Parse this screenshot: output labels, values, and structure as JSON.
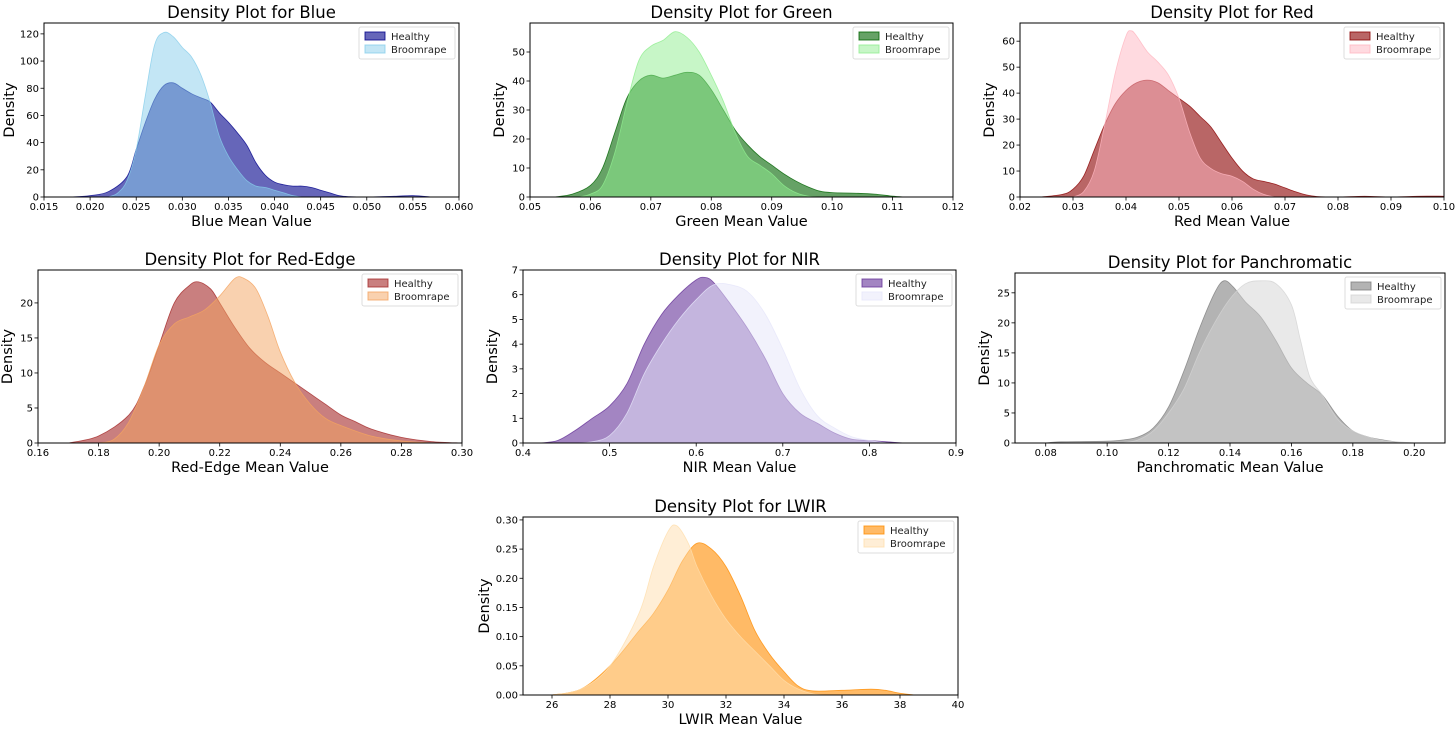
{
  "chart_data": [
    {
      "type": "area",
      "title": "Density Plot for Blue",
      "xlabel": "Blue Mean Value",
      "ylabel": "Density",
      "xlim": [
        0.015,
        0.06
      ],
      "ylim": [
        0,
        128
      ],
      "xticks": [
        0.015,
        0.02,
        0.025,
        0.03,
        0.035,
        0.04,
        0.045,
        0.05,
        0.055,
        0.06
      ],
      "xtick_labels": [
        "0.015",
        "0.020",
        "0.025",
        "0.030",
        "0.035",
        "0.040",
        "0.045",
        "0.050",
        "0.055",
        "0.060"
      ],
      "yticks": [
        0,
        20,
        40,
        60,
        80,
        100,
        120
      ],
      "ytick_labels": [
        "0",
        "20",
        "40",
        "60",
        "80",
        "100",
        "120"
      ],
      "legend": "top-right",
      "series": [
        {
          "name": "Healthy",
          "color": "#00008b",
          "x": [
            0.018,
            0.02,
            0.022,
            0.024,
            0.025,
            0.026,
            0.027,
            0.028,
            0.029,
            0.03,
            0.031,
            0.032,
            0.033,
            0.034,
            0.035,
            0.036,
            0.037,
            0.038,
            0.039,
            0.04,
            0.041,
            0.042,
            0.043,
            0.044,
            0.045,
            0.046,
            0.047,
            0.048,
            0.05,
            0.053,
            0.055,
            0.057
          ],
          "y": [
            0,
            1,
            4,
            15,
            35,
            55,
            72,
            82,
            84,
            80,
            76,
            73,
            70,
            62,
            55,
            47,
            38,
            25,
            16,
            11,
            9,
            8,
            8,
            7,
            5,
            3,
            1,
            0.3,
            0,
            0.5,
            1,
            0
          ]
        },
        {
          "name": "Broomrape",
          "color": "#87ceeb",
          "x": [
            0.022,
            0.023,
            0.024,
            0.025,
            0.026,
            0.027,
            0.028,
            0.029,
            0.03,
            0.031,
            0.032,
            0.033,
            0.034,
            0.035,
            0.036,
            0.037,
            0.038,
            0.039,
            0.04,
            0.041,
            0.042,
            0.043
          ],
          "y": [
            0,
            3,
            12,
            35,
            75,
            112,
            121,
            118,
            110,
            103,
            90,
            70,
            45,
            30,
            20,
            12,
            8,
            7,
            5,
            3,
            1,
            0
          ]
        }
      ]
    },
    {
      "type": "area",
      "title": "Density Plot for Green",
      "xlabel": "Green Mean Value",
      "ylabel": "Density",
      "xlim": [
        0.05,
        0.12
      ],
      "ylim": [
        0,
        60
      ],
      "xticks": [
        0.05,
        0.06,
        0.07,
        0.08,
        0.09,
        0.1,
        0.11,
        0.12
      ],
      "xtick_labels": [
        "0.05",
        "0.06",
        "0.07",
        "0.08",
        "0.09",
        "0.10",
        "0.11",
        "0.12"
      ],
      "yticks": [
        0,
        10,
        20,
        30,
        40,
        50
      ],
      "ytick_labels": [
        "0",
        "10",
        "20",
        "30",
        "40",
        "50"
      ],
      "legend": "top-right",
      "series": [
        {
          "name": "Healthy",
          "color": "#006400",
          "x": [
            0.054,
            0.057,
            0.06,
            0.062,
            0.064,
            0.066,
            0.068,
            0.07,
            0.072,
            0.074,
            0.076,
            0.078,
            0.08,
            0.082,
            0.084,
            0.086,
            0.088,
            0.09,
            0.092,
            0.094,
            0.096,
            0.098,
            0.1,
            0.104,
            0.107,
            0.11,
            0.112
          ],
          "y": [
            0,
            1,
            4,
            10,
            22,
            34,
            40,
            42,
            41,
            42,
            43,
            42,
            37,
            30,
            23,
            18,
            14,
            11,
            8,
            5.5,
            3.5,
            2,
            1.5,
            1.3,
            1,
            0.3,
            0
          ]
        },
        {
          "name": "Broomrape",
          "color": "#90ee90",
          "x": [
            0.058,
            0.06,
            0.062,
            0.064,
            0.066,
            0.068,
            0.07,
            0.072,
            0.074,
            0.076,
            0.078,
            0.08,
            0.082,
            0.084,
            0.086,
            0.088,
            0.09,
            0.092,
            0.094,
            0.096,
            0.098
          ],
          "y": [
            0,
            1,
            4,
            15,
            32,
            47,
            52,
            54,
            57,
            55,
            50,
            42,
            33,
            22,
            14,
            11,
            8,
            4,
            1.5,
            0.3,
            0
          ]
        }
      ]
    },
    {
      "type": "area",
      "title": "Density Plot for Red",
      "xlabel": "Red Mean Value",
      "ylabel": "Density",
      "xlim": [
        0.02,
        0.1
      ],
      "ylim": [
        0,
        67
      ],
      "xticks": [
        0.02,
        0.03,
        0.04,
        0.05,
        0.06,
        0.07,
        0.08,
        0.09,
        0.1
      ],
      "xtick_labels": [
        "0.02",
        "0.03",
        "0.04",
        "0.05",
        "0.06",
        "0.07",
        "0.08",
        "0.09",
        "0.10"
      ],
      "yticks": [
        0,
        10,
        20,
        30,
        40,
        50,
        60
      ],
      "ytick_labels": [
        "0",
        "10",
        "20",
        "30",
        "40",
        "50",
        "60"
      ],
      "legend": "top-right",
      "series": [
        {
          "name": "Healthy",
          "color": "#8b0000",
          "x": [
            0.024,
            0.028,
            0.03,
            0.032,
            0.034,
            0.036,
            0.038,
            0.04,
            0.042,
            0.044,
            0.046,
            0.048,
            0.05,
            0.052,
            0.054,
            0.056,
            0.058,
            0.06,
            0.062,
            0.064,
            0.066,
            0.068,
            0.07,
            0.072,
            0.074,
            0.076,
            0.08,
            0.085,
            0.09,
            0.095,
            0.1
          ],
          "y": [
            0,
            1,
            3,
            8,
            18,
            28,
            36,
            41,
            44,
            45,
            44,
            41,
            38,
            35,
            31,
            27,
            21,
            15,
            10,
            7,
            6,
            5,
            3.5,
            2,
            0.8,
            0.2,
            0,
            0.3,
            0,
            0.3,
            0.3
          ]
        },
        {
          "name": "Broomrape",
          "color": "#ffb6c1",
          "x": [
            0.03,
            0.032,
            0.034,
            0.036,
            0.038,
            0.04,
            0.041,
            0.042,
            0.044,
            0.046,
            0.048,
            0.05,
            0.052,
            0.054,
            0.056,
            0.058,
            0.06,
            0.062,
            0.064,
            0.066,
            0.068
          ],
          "y": [
            0,
            2,
            10,
            28,
            48,
            62,
            64,
            62,
            56,
            52,
            47,
            38,
            25,
            15,
            11,
            9,
            8,
            6,
            3,
            1,
            0
          ]
        }
      ]
    },
    {
      "type": "area",
      "title": "Density Plot for Red-Edge",
      "xlabel": "Red-Edge Mean Value",
      "ylabel": "Density",
      "xlim": [
        0.16,
        0.3
      ],
      "ylim": [
        0,
        24.7
      ],
      "xticks": [
        0.16,
        0.18,
        0.2,
        0.22,
        0.24,
        0.26,
        0.28,
        0.3
      ],
      "xtick_labels": [
        "0.16",
        "0.18",
        "0.20",
        "0.22",
        "0.24",
        "0.26",
        "0.28",
        "0.30"
      ],
      "yticks": [
        0,
        5,
        10,
        15,
        20
      ],
      "ytick_labels": [
        "0",
        "5",
        "10",
        "15",
        "20"
      ],
      "legend": "top-right",
      "series": [
        {
          "name": "Healthy",
          "color": "#a52a2a",
          "x": [
            0.17,
            0.18,
            0.19,
            0.195,
            0.2,
            0.205,
            0.21,
            0.213,
            0.217,
            0.22,
            0.225,
            0.23,
            0.235,
            0.24,
            0.245,
            0.25,
            0.255,
            0.26,
            0.265,
            0.27,
            0.28,
            0.29,
            0.3
          ],
          "y": [
            0,
            1,
            4,
            8,
            14,
            20,
            22.5,
            23,
            22,
            20,
            16.5,
            13.5,
            11.5,
            10,
            8.5,
            7,
            5.5,
            4,
            3,
            2,
            0.8,
            0.2,
            0
          ]
        },
        {
          "name": "Broomrape",
          "color": "#f4a460",
          "x": [
            0.18,
            0.185,
            0.19,
            0.195,
            0.2,
            0.205,
            0.21,
            0.215,
            0.22,
            0.225,
            0.228,
            0.232,
            0.236,
            0.24,
            0.245,
            0.25,
            0.255,
            0.26,
            0.27,
            0.28,
            0.29
          ],
          "y": [
            0,
            0.5,
            3,
            8,
            14,
            17,
            18,
            19,
            21,
            23.5,
            23.5,
            22,
            18,
            13,
            8.5,
            5.5,
            3.5,
            2.5,
            1,
            0.3,
            0
          ]
        }
      ]
    },
    {
      "type": "area",
      "title": "Density Plot for NIR",
      "xlabel": "NIR Mean Value",
      "ylabel": "Density",
      "xlim": [
        0.4,
        0.9
      ],
      "ylim": [
        0,
        7
      ],
      "xticks": [
        0.4,
        0.5,
        0.6,
        0.7,
        0.8,
        0.9
      ],
      "xtick_labels": [
        "0.4",
        "0.5",
        "0.6",
        "0.7",
        "0.8",
        "0.9"
      ],
      "yticks": [
        0,
        1,
        2,
        3,
        4,
        5,
        6,
        7
      ],
      "ytick_labels": [
        "0",
        "1",
        "2",
        "3",
        "4",
        "5",
        "6",
        "7"
      ],
      "legend": "top-right",
      "series": [
        {
          "name": "Healthy",
          "color": "#663399",
          "x": [
            0.42,
            0.44,
            0.46,
            0.48,
            0.5,
            0.52,
            0.54,
            0.56,
            0.58,
            0.6,
            0.61,
            0.62,
            0.64,
            0.66,
            0.68,
            0.7,
            0.72,
            0.74,
            0.76,
            0.78,
            0.8,
            0.82,
            0.84
          ],
          "y": [
            0,
            0.1,
            0.5,
            1.0,
            1.5,
            2.4,
            4.0,
            5.2,
            6.0,
            6.6,
            6.7,
            6.5,
            5.6,
            4.6,
            3.4,
            2.0,
            1.2,
            0.8,
            0.4,
            0.15,
            0.1,
            0.05,
            0
          ]
        },
        {
          "name": "Broomrape",
          "color": "#e6e6fa",
          "x": [
            0.46,
            0.48,
            0.5,
            0.52,
            0.54,
            0.56,
            0.58,
            0.6,
            0.62,
            0.64,
            0.66,
            0.68,
            0.7,
            0.72,
            0.74,
            0.76,
            0.78,
            0.8,
            0.82
          ],
          "y": [
            0,
            0.05,
            0.3,
            1.2,
            2.8,
            4.0,
            5.0,
            5.8,
            6.4,
            6.4,
            6.1,
            5.2,
            3.8,
            2.2,
            1.1,
            0.6,
            0.25,
            0.1,
            0
          ]
        }
      ]
    },
    {
      "type": "area",
      "title": "Density Plot for Panchromatic",
      "xlabel": "Panchromatic Mean Value",
      "ylabel": "Density",
      "xlim": [
        0.07,
        0.21
      ],
      "ylim": [
        0,
        28.3
      ],
      "xticks": [
        0.08,
        0.1,
        0.12,
        0.14,
        0.16,
        0.18,
        0.2
      ],
      "xtick_labels": [
        "0.08",
        "0.10",
        "0.12",
        "0.14",
        "0.16",
        "0.18",
        "0.20"
      ],
      "yticks": [
        0,
        5,
        10,
        15,
        20,
        25
      ],
      "ytick_labels": [
        "0",
        "5",
        "10",
        "15",
        "20",
        "25"
      ],
      "legend": "top-right",
      "series": [
        {
          "name": "Healthy",
          "color": "#808080",
          "x": [
            0.08,
            0.085,
            0.1,
            0.105,
            0.11,
            0.115,
            0.12,
            0.125,
            0.13,
            0.135,
            0.138,
            0.141,
            0.145,
            0.15,
            0.155,
            0.16,
            0.165,
            0.17,
            0.175,
            0.18,
            0.185,
            0.19,
            0.195,
            0.2
          ],
          "y": [
            0,
            0.2,
            0.3,
            0.5,
            1,
            2.5,
            6,
            12,
            19,
            25,
            27,
            26,
            23.5,
            21,
            17,
            12.5,
            10,
            8,
            4.5,
            2,
            1,
            0.5,
            0.1,
            0
          ]
        },
        {
          "name": "Broomrape",
          "color": "#d3d3d3",
          "x": [
            0.105,
            0.11,
            0.115,
            0.12,
            0.125,
            0.13,
            0.135,
            0.14,
            0.145,
            0.15,
            0.155,
            0.16,
            0.163,
            0.166,
            0.17,
            0.175,
            0.18,
            0.185,
            0.19,
            0.2
          ],
          "y": [
            0,
            0.5,
            2,
            5,
            9,
            15,
            20,
            24,
            26.5,
            27,
            26.5,
            23,
            17,
            11,
            8,
            4,
            2,
            1,
            0.4,
            0
          ]
        }
      ]
    },
    {
      "type": "area",
      "title": "Density Plot for LWIR",
      "xlabel": "LWIR Mean Value",
      "ylabel": "Density",
      "xlim": [
        25,
        40
      ],
      "ylim": [
        0,
        0.305
      ],
      "xticks": [
        26,
        28,
        30,
        32,
        34,
        36,
        38,
        40
      ],
      "xtick_labels": [
        "26",
        "28",
        "30",
        "32",
        "34",
        "36",
        "38",
        "40"
      ],
      "yticks": [
        0,
        0.05,
        0.1,
        0.15,
        0.2,
        0.25,
        0.3
      ],
      "ytick_labels": [
        "0.00",
        "0.05",
        "0.10",
        "0.15",
        "0.20",
        "0.25",
        "0.30"
      ],
      "legend": "top-right",
      "series": [
        {
          "name": "Healthy",
          "color": "#ff8c00",
          "x": [
            26,
            27,
            28,
            29,
            29.5,
            30,
            30.5,
            31,
            31.5,
            32,
            32.5,
            33,
            33.5,
            34,
            34.5,
            35,
            36,
            37,
            37.5,
            38,
            38.5
          ],
          "y": [
            0,
            0.01,
            0.05,
            0.11,
            0.14,
            0.18,
            0.23,
            0.26,
            0.25,
            0.22,
            0.17,
            0.11,
            0.07,
            0.04,
            0.015,
            0.007,
            0.008,
            0.01,
            0.008,
            0.003,
            0
          ]
        },
        {
          "name": "Broomrape",
          "color": "#ffdead",
          "x": [
            26,
            27,
            28,
            29,
            29.5,
            30,
            30.3,
            30.7,
            31,
            31.5,
            32,
            32.5,
            33,
            33.5,
            34,
            34.5,
            35,
            35.5
          ],
          "y": [
            0,
            0.01,
            0.05,
            0.14,
            0.22,
            0.28,
            0.29,
            0.26,
            0.22,
            0.17,
            0.13,
            0.1,
            0.075,
            0.05,
            0.025,
            0.01,
            0.002,
            0
          ]
        }
      ]
    }
  ]
}
